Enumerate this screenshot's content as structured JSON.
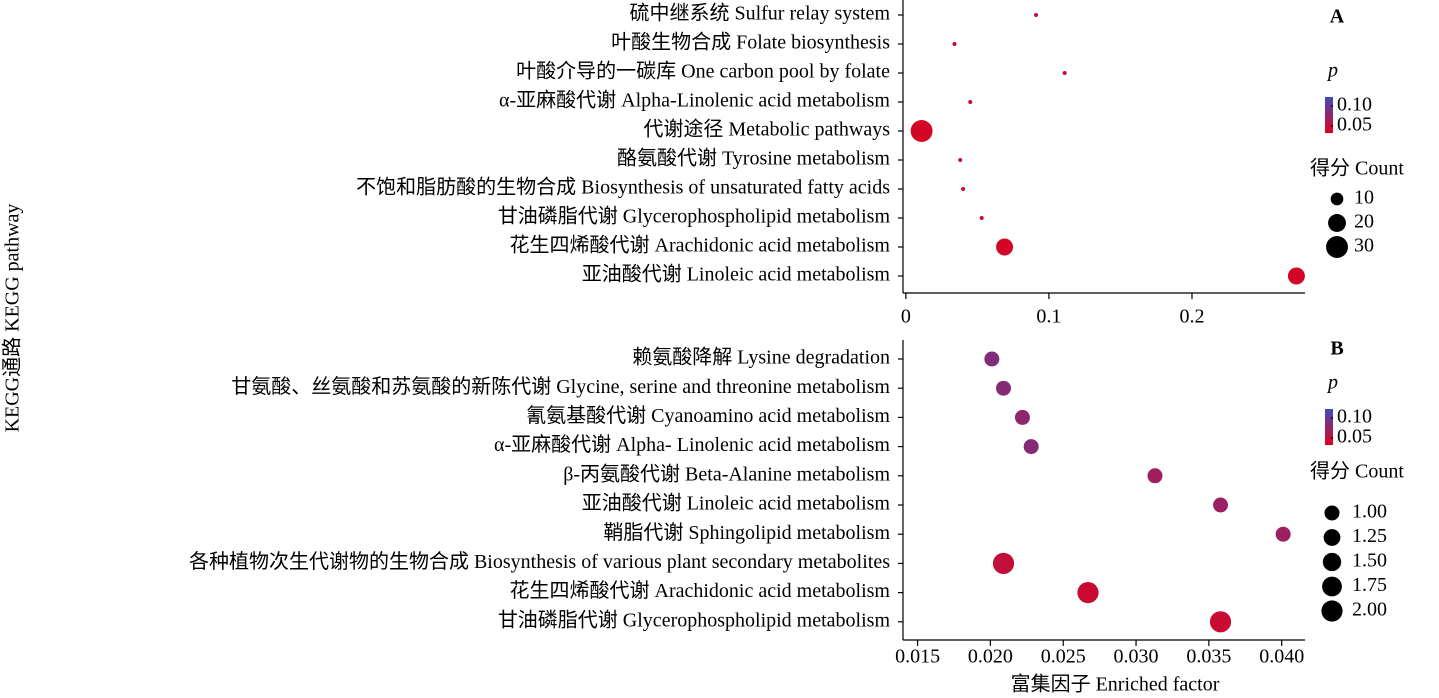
{
  "chart_data": [
    {
      "type": "bubble",
      "panel": "A",
      "ylabel": "KEGG通路 KEGG pathway",
      "categories": [
        "硫中继系统 Sulfur relay system",
        "叶酸生物合成 Folate biosynthesis",
        "叶酸介导的一碳库 One carbon pool by folate",
        "α-亚麻酸代谢 Alpha-Linolenic acid metabolism",
        "代谢途径 Metabolic pathways",
        "酪氨酸代谢 Tyrosine metabolism",
        "不饱和脂肪酸的生物合成 Biosynthesis of unsaturated fatty acids",
        "甘油磷脂代谢 Glycerophospholipid metabolism",
        "花生四烯酸代谢 Arachidonic acid metabolism",
        "亚油酸代谢 Linoleic acid metabolism"
      ],
      "values": [
        0.091,
        0.034,
        0.111,
        0.045,
        0.011,
        0.038,
        0.04,
        0.053,
        0.069,
        0.273
      ],
      "sizes": [
        1,
        1,
        1,
        1,
        30,
        1,
        1,
        1,
        18,
        18
      ],
      "pvalues": [
        0.048,
        0.046,
        0.048,
        0.046,
        0.04,
        0.045,
        0.045,
        0.046,
        0.04,
        0.04
      ],
      "xlim": [
        -0.002,
        0.279
      ],
      "xticks": [
        0,
        0.1,
        0.2
      ],
      "colorbar_title": "p",
      "clim": [
        0.0325,
        0.1225
      ],
      "cticks": [
        {
          "value": 0.1,
          "label": "0.10"
        },
        0.05
      ],
      "low_color": "#e2001a",
      "high_color": "#3b4cc0",
      "size_title": "得分 Count",
      "size_ticks": [
        10,
        20,
        30
      ]
    },
    {
      "type": "bubble",
      "panel": "B",
      "xlabel": "富集因子 Enriched factor",
      "categories": [
        "赖氨酸降解 Lysine degradation",
        "甘氨酸、丝氨酸和苏氨酸的新陈代谢 Glycine, serine and threonine metabolism",
        "氰氨基酸代谢 Cyanoamino acid metabolism",
        "α-亚麻酸代谢 Alpha- Linolenic acid metabolism",
        "β-丙氨酸代谢 Beta-Alanine metabolism",
        "亚油酸代谢 Linoleic acid metabolism",
        "鞘脂代谢 Sphingolipid metabolism",
        "各种植物次生代谢物的生物合成 Biosynthesis of various plant secondary metabolites",
        "花生四烯酸代谢 Arachidonic acid metabolism",
        "甘油磷脂代谢 Glycerophospholipid metabolism"
      ],
      "values": [
        0.0201,
        0.0209,
        0.0222,
        0.0228,
        0.0313,
        0.0358,
        0.0401,
        0.0209,
        0.0267,
        0.0358
      ],
      "sizes": [
        1,
        1,
        1,
        1,
        1,
        1,
        1,
        2,
        2,
        2
      ],
      "pvalues": [
        0.085,
        0.082,
        0.078,
        0.082,
        0.068,
        0.072,
        0.07,
        0.05,
        0.046,
        0.046
      ],
      "xlim": [
        0.014,
        0.0416
      ],
      "xticks": [
        0.015,
        {
          "value": 0.02,
          "label": "0.020"
        },
        0.025,
        {
          "value": 0.03,
          "label": "0.030"
        },
        0.035,
        {
          "value": 0.04,
          "label": "0.040"
        }
      ],
      "colorbar_title": "p",
      "clim": [
        0.0325,
        0.1225
      ],
      "cticks": [
        {
          "value": 0.1,
          "label": "0.10"
        },
        0.05
      ],
      "low_color": "#e2001a",
      "high_color": "#3b4cc0",
      "size_title": "得分 Count",
      "size_ticks": [
        {
          "value": 1,
          "label": "1.00"
        },
        {
          "value": 1.25,
          "label": "1.25"
        },
        {
          "value": 1.5,
          "label": "1.50"
        },
        {
          "value": 1.75,
          "label": "1.75"
        },
        {
          "value": 2,
          "label": "2.00"
        }
      ]
    }
  ]
}
